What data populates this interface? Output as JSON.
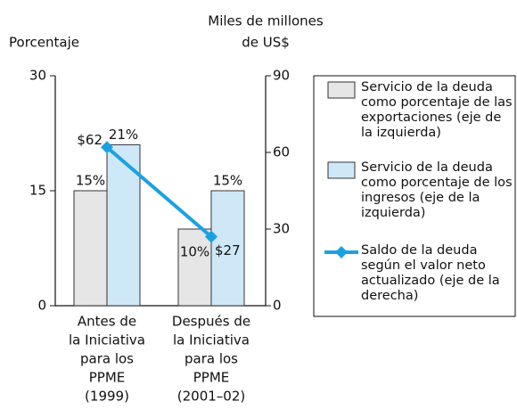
{
  "chart_data": {
    "type": "bar",
    "ylabel": "Porcentaje",
    "y2label": [
      "Miles de millones",
      "de US$"
    ],
    "categories": [
      [
        "Antes de",
        "la Iniciativa",
        "para los",
        "PPME",
        "(1999)"
      ],
      [
        "Después de",
        "la Iniciativa",
        "para los",
        "PPME",
        "(2001–02)"
      ]
    ],
    "series": [
      {
        "name": "Servicio de la deuda como porcentaje de las exportaciones (eje de la izquierda)",
        "type": "bar",
        "color": "#e6e6e6",
        "values": [
          15,
          10
        ],
        "value_labels": [
          "15%",
          "10%"
        ]
      },
      {
        "name": "Servicio de la deuda como porcentaje de los ingresos (eje de la izquierda)",
        "type": "bar",
        "color": "#cfe8f8",
        "values": [
          21,
          15
        ],
        "value_labels": [
          "21%",
          "15%"
        ]
      },
      {
        "name": "Saldo de la deuda según el valor neto actualizado (eje de la derecha)",
        "type": "line",
        "axis": "y2",
        "color": "#1ba1e2",
        "values": [
          62,
          27
        ],
        "value_labels": [
          "$62",
          "$27"
        ]
      }
    ],
    "ylim": [
      0,
      30
    ],
    "yticks": [
      0,
      15,
      30
    ],
    "y2lim": [
      0,
      90
    ],
    "y2ticks": [
      0,
      30,
      60,
      90
    ],
    "legend": "right"
  }
}
